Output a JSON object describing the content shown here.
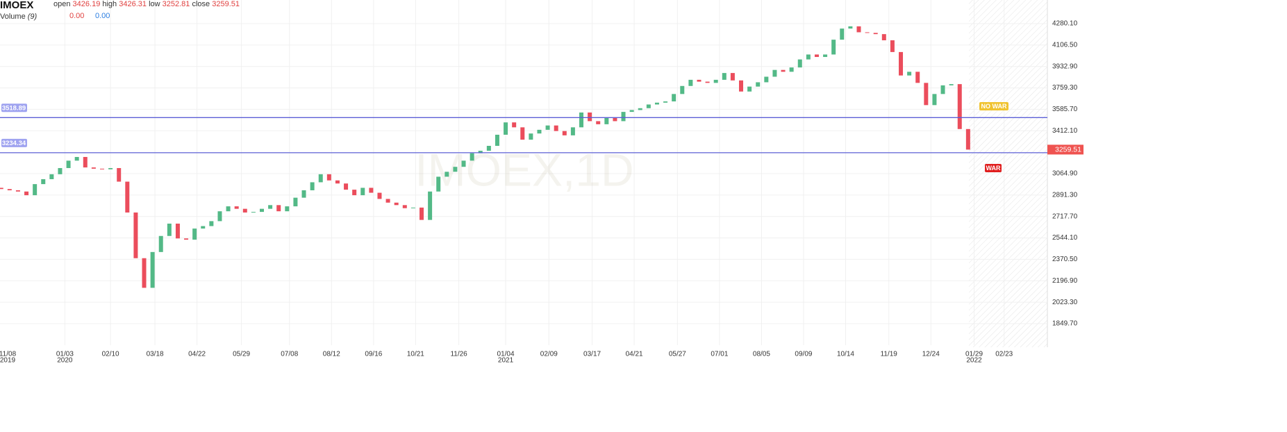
{
  "header": {
    "symbol": "IMOEX",
    "ohlc": [
      {
        "label": "open",
        "value": 3426.19
      },
      {
        "label": "high",
        "value": 3426.31
      },
      {
        "label": "low",
        "value": 3252.81
      },
      {
        "label": "close",
        "value": 3259.51
      }
    ],
    "volume": {
      "label": "Volume",
      "period": "(9)",
      "values": [
        {
          "value": 0,
          "label": "0.00"
        },
        {
          "value": 0,
          "label": "0.00"
        }
      ]
    }
  },
  "chart_data": {
    "type": "candlestick",
    "watermark": "IMOEX,1D",
    "x": [
      "2019-11-04",
      "2019-11-11",
      "2019-11-18",
      "2019-11-25",
      "2019-12-02",
      "2019-12-09",
      "2019-12-16",
      "2019-12-23",
      "2019-12-30",
      "2020-01-06",
      "2020-01-13",
      "2020-01-20",
      "2020-01-27",
      "2020-02-03",
      "2020-02-10",
      "2020-02-17",
      "2020-02-24",
      "2020-03-02",
      "2020-03-09",
      "2020-03-16",
      "2020-03-23",
      "2020-03-30",
      "2020-04-06",
      "2020-04-13",
      "2020-04-20",
      "2020-04-27",
      "2020-05-04",
      "2020-05-11",
      "2020-05-18",
      "2020-05-25",
      "2020-06-01",
      "2020-06-08",
      "2020-06-15",
      "2020-06-22",
      "2020-06-29",
      "2020-07-06",
      "2020-07-13",
      "2020-07-20",
      "2020-07-27",
      "2020-08-03",
      "2020-08-10",
      "2020-08-17",
      "2020-08-24",
      "2020-08-31",
      "2020-09-07",
      "2020-09-14",
      "2020-09-21",
      "2020-09-28",
      "2020-10-05",
      "2020-10-12",
      "2020-10-19",
      "2020-10-26",
      "2020-11-02",
      "2020-11-09",
      "2020-11-16",
      "2020-11-23",
      "2020-11-30",
      "2020-12-07",
      "2020-12-14",
      "2020-12-21",
      "2020-12-28",
      "2021-01-04",
      "2021-01-11",
      "2021-01-18",
      "2021-01-25",
      "2021-02-01",
      "2021-02-08",
      "2021-02-15",
      "2021-02-22",
      "2021-03-01",
      "2021-03-08",
      "2021-03-15",
      "2021-03-22",
      "2021-03-29",
      "2021-04-05",
      "2021-04-12",
      "2021-04-19",
      "2021-04-26",
      "2021-05-03",
      "2021-05-10",
      "2021-05-17",
      "2021-05-24",
      "2021-05-31",
      "2021-06-07",
      "2021-06-14",
      "2021-06-21",
      "2021-06-28",
      "2021-07-05",
      "2021-07-12",
      "2021-07-19",
      "2021-07-26",
      "2021-08-02",
      "2021-08-09",
      "2021-08-16",
      "2021-08-23",
      "2021-08-30",
      "2021-09-06",
      "2021-09-13",
      "2021-09-20",
      "2021-09-27",
      "2021-10-04",
      "2021-10-11",
      "2021-10-18",
      "2021-10-25",
      "2021-11-01",
      "2021-11-08",
      "2021-11-15",
      "2021-11-22",
      "2021-11-29",
      "2021-12-06",
      "2021-12-13",
      "2021-12-20",
      "2021-12-27",
      "2022-01-03",
      "2022-01-10",
      "2022-01-17",
      "2022-01-24"
    ],
    "open": [
      2960,
      2950,
      2940,
      2930,
      2920,
      2890,
      2980,
      3020,
      3060,
      3110,
      3170,
      3200,
      3115,
      3105,
      3100,
      3110,
      3000,
      2750,
      2380,
      2140,
      2430,
      2560,
      2660,
      2540,
      2530,
      2620,
      2640,
      2680,
      2760,
      2800,
      2780,
      2750,
      2755,
      2780,
      2810,
      2760,
      2800,
      2870,
      2930,
      2995,
      3060,
      3010,
      2985,
      2935,
      2890,
      2950,
      2910,
      2860,
      2830,
      2810,
      2785,
      2790,
      2690,
      2920,
      3040,
      3080,
      3120,
      3170,
      3230,
      3250,
      3290,
      3380,
      3480,
      3440,
      3340,
      3390,
      3420,
      3455,
      3410,
      3375,
      3440,
      3560,
      3490,
      3465,
      3515,
      3490,
      3565,
      3580,
      3595,
      3625,
      3640,
      3650,
      3710,
      3775,
      3825,
      3810,
      3800,
      3825,
      3880,
      3820,
      3730,
      3770,
      3805,
      3850,
      3905,
      3890,
      3925,
      3990,
      4030,
      4010,
      4030,
      4150,
      4240,
      4258,
      4210,
      4205,
      4195,
      4145,
      4050,
      3860,
      3890,
      3800,
      3620,
      3710,
      3780,
      3790,
      3426.19
    ],
    "close": [
      2950,
      2940,
      2930,
      2920,
      2890,
      2980,
      3020,
      3060,
      3110,
      3170,
      3200,
      3115,
      3105,
      3100,
      3110,
      3000,
      2750,
      2380,
      2140,
      2430,
      2560,
      2660,
      2540,
      2530,
      2620,
      2640,
      2680,
      2760,
      2800,
      2780,
      2750,
      2755,
      2780,
      2810,
      2760,
      2800,
      2870,
      2930,
      2995,
      3060,
      3010,
      2985,
      2935,
      2890,
      2950,
      2910,
      2860,
      2830,
      2810,
      2785,
      2790,
      2690,
      2920,
      3040,
      3080,
      3120,
      3170,
      3230,
      3250,
      3290,
      3380,
      3480,
      3440,
      3340,
      3390,
      3420,
      3455,
      3410,
      3375,
      3440,
      3560,
      3490,
      3465,
      3515,
      3490,
      3565,
      3580,
      3595,
      3625,
      3640,
      3650,
      3710,
      3775,
      3825,
      3810,
      3800,
      3825,
      3880,
      3820,
      3730,
      3770,
      3805,
      3850,
      3905,
      3890,
      3925,
      3990,
      4030,
      4010,
      4030,
      4150,
      4240,
      4258,
      4210,
      4205,
      4195,
      4145,
      4050,
      3860,
      3890,
      3800,
      3620,
      3710,
      3780,
      3790,
      3426.19,
      3259.51
    ],
    "up_color": "#53b987",
    "down_color": "#eb4d5c",
    "xlim": [
      "2019-11-10",
      "2022-03-31"
    ],
    "xticks": [
      {
        "value": "2019-11-08",
        "label": "11/08",
        "year": "2019"
      },
      {
        "value": "2020-01-03",
        "label": "01/03",
        "year": "2020"
      },
      {
        "value": "2020-02-10",
        "label": "02/10"
      },
      {
        "value": "2020-03-18",
        "label": "03/18"
      },
      {
        "value": "2020-04-22",
        "label": "04/22"
      },
      {
        "value": "2020-05-29",
        "label": "05/29"
      },
      {
        "value": "2020-07-08",
        "label": "07/08"
      },
      {
        "value": "2020-08-12",
        "label": "08/12"
      },
      {
        "value": "2020-09-16",
        "label": "09/16"
      },
      {
        "value": "2020-10-21",
        "label": "10/21"
      },
      {
        "value": "2020-11-26",
        "label": "11/26"
      },
      {
        "value": "2021-01-04",
        "label": "01/04",
        "year": "2021"
      },
      {
        "value": "2021-02-09",
        "label": "02/09"
      },
      {
        "value": "2021-03-17",
        "label": "03/17"
      },
      {
        "value": "2021-04-21",
        "label": "04/21"
      },
      {
        "value": "2021-05-27",
        "label": "05/27"
      },
      {
        "value": "2021-07-01",
        "label": "07/01"
      },
      {
        "value": "2021-08-05",
        "label": "08/05"
      },
      {
        "value": "2021-09-09",
        "label": "09/09"
      },
      {
        "value": "2021-10-14",
        "label": "10/14"
      },
      {
        "value": "2021-11-19",
        "label": "11/19"
      },
      {
        "value": "2021-12-24",
        "label": "12/24"
      },
      {
        "value": "2022-01-29",
        "label": "01/29",
        "year": "2022"
      },
      {
        "value": "2022-02-23",
        "label": "02/23"
      }
    ],
    "ylim": [
      1675.3,
      4471.4
    ],
    "yticks": [
      {
        "value": 4280.1,
        "label": "4280.10"
      },
      {
        "value": 4106.5,
        "label": "4106.50"
      },
      {
        "value": 3932.9,
        "label": "3932.90"
      },
      {
        "value": 3759.3,
        "label": "3759.30"
      },
      {
        "value": 3585.7,
        "label": "3585.70"
      },
      {
        "value": 3412.1,
        "label": "3412.10"
      },
      {
        "value": 3064.9,
        "label": "3064.90"
      },
      {
        "value": 2891.3,
        "label": "2891.30"
      },
      {
        "value": 2717.7,
        "label": "2717.70"
      },
      {
        "value": 2544.1,
        "label": "2544.10"
      },
      {
        "value": 2370.5,
        "label": "2370.50"
      },
      {
        "value": 2196.9,
        "label": "2196.90"
      },
      {
        "value": 2023.3,
        "label": "2023.30"
      },
      {
        "value": 1849.7,
        "label": "1849.70"
      }
    ],
    "grid": true,
    "hlines": [
      3518.89,
      3234.34
    ],
    "hline_color": "#5b5fd6",
    "last_price": 3259.51,
    "last_price_color": "#ef5350",
    "annotations": [
      {
        "text": "NO WAR",
        "color": "#f0c330"
      },
      {
        "text": "WAR",
        "color": "#e01f1f"
      }
    ]
  }
}
